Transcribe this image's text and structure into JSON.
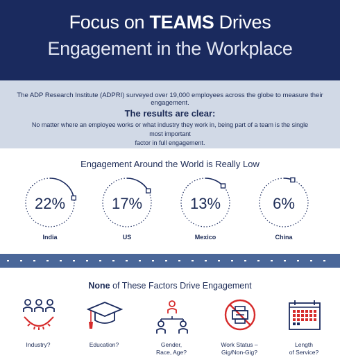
{
  "header": {
    "title_line1_pre": "Focus on ",
    "title_line1_bold": "TEAMS",
    "title_line1_post": " Drives",
    "title_line2": "Engagement in the Workplace"
  },
  "intro": {
    "survey": "The ADP Research Institute (ADPRI) surveyed over 19,000 employees across the globe to measure their engagement.",
    "results_heading": "The results are clear:",
    "detail_line1": "No matter where an employee works or what industry they work in, being part of a team is the single most important",
    "detail_line2": "factor in full engagement."
  },
  "world": {
    "title": "Engagement Around the World is Really Low",
    "countries": [
      {
        "name": "India",
        "percent": "22%",
        "value": 22
      },
      {
        "name": "US",
        "percent": "17%",
        "value": 17
      },
      {
        "name": "Mexico",
        "percent": "13%",
        "value": 13
      },
      {
        "name": "China",
        "percent": "6%",
        "value": 6
      }
    ]
  },
  "factors": {
    "title_bold": "None",
    "title_rest": " of These Factors Drive Engagement",
    "items": [
      {
        "icon": "people-smile-icon",
        "line1": "Industry?",
        "line2": ""
      },
      {
        "icon": "graduation-cap-icon",
        "line1": "Education?",
        "line2": ""
      },
      {
        "icon": "people-group-icon",
        "line1": "Gender,",
        "line2": "Race, Age?"
      },
      {
        "icon": "no-printer-icon",
        "line1": "Work Status –",
        "line2": "Gig/Non-Gig?"
      },
      {
        "icon": "calendar-icon",
        "line1": "Length",
        "line2": "of Service?"
      }
    ]
  },
  "colors": {
    "navy": "#1a2a5e",
    "light_blue": "#d1d9e6",
    "divider_blue": "#4a6799",
    "red": "#d62b2b"
  }
}
